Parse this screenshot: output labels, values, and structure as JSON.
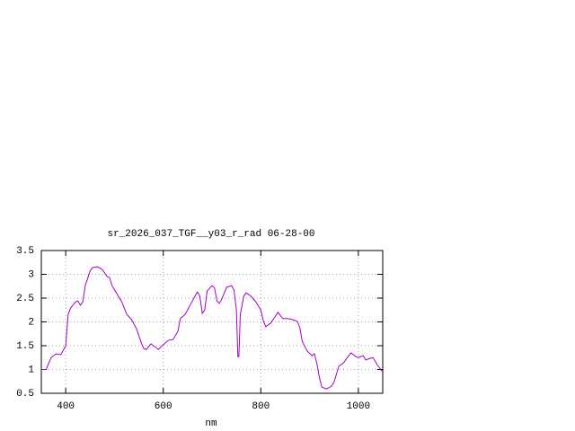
{
  "chart_data": {
    "type": "line",
    "title": "sr_2026_037_TGF__y03_r_rad 06-28-00",
    "xlabel": "nm",
    "xlim": [
      350,
      1050
    ],
    "xticks": [
      400,
      600,
      800,
      1000
    ],
    "ylim": [
      0.5,
      3.5
    ],
    "yticks": [
      0.5,
      1,
      1.5,
      2,
      2.5,
      3,
      3.5
    ],
    "grid": true,
    "series": [
      {
        "color": "#a000c8",
        "x": [
          350,
          360,
          370,
          380,
          390,
          400,
          405,
          410,
          420,
          425,
          430,
          435,
          440,
          450,
          455,
          465,
          475,
          485,
          490,
          495,
          505,
          515,
          525,
          535,
          545,
          555,
          560,
          565,
          575,
          585,
          590,
          600,
          610,
          620,
          630,
          635,
          645,
          655,
          665,
          670,
          675,
          680,
          685,
          690,
          700,
          705,
          710,
          715,
          720,
          730,
          740,
          745,
          750,
          753,
          755,
          758,
          765,
          770,
          780,
          790,
          800,
          805,
          810,
          820,
          830,
          835,
          845,
          855,
          865,
          875,
          880,
          885,
          895,
          905,
          910,
          915,
          920,
          925,
          935,
          945,
          950,
          960,
          970,
          975,
          985,
          995,
          1000,
          1010,
          1015,
          1020,
          1030,
          1040,
          1050
        ],
        "values": [
          1.0,
          1.0,
          1.25,
          1.33,
          1.31,
          1.5,
          2.16,
          2.29,
          2.42,
          2.44,
          2.35,
          2.42,
          2.76,
          3.07,
          3.14,
          3.16,
          3.1,
          2.95,
          2.93,
          2.76,
          2.59,
          2.42,
          2.16,
          2.05,
          1.86,
          1.56,
          1.44,
          1.42,
          1.54,
          1.46,
          1.42,
          1.52,
          1.61,
          1.63,
          1.8,
          2.07,
          2.16,
          2.35,
          2.54,
          2.63,
          2.54,
          2.18,
          2.25,
          2.65,
          2.76,
          2.72,
          2.44,
          2.39,
          2.48,
          2.73,
          2.76,
          2.67,
          2.25,
          1.27,
          1.27,
          2.16,
          2.54,
          2.61,
          2.54,
          2.42,
          2.25,
          2.03,
          1.9,
          1.97,
          2.12,
          2.2,
          2.07,
          2.07,
          2.05,
          2.01,
          1.88,
          1.59,
          1.39,
          1.29,
          1.33,
          1.12,
          0.84,
          0.63,
          0.59,
          0.65,
          0.73,
          1.07,
          1.14,
          1.22,
          1.35,
          1.27,
          1.25,
          1.29,
          1.2,
          1.22,
          1.25,
          1.08,
          0.95
        ]
      }
    ]
  }
}
